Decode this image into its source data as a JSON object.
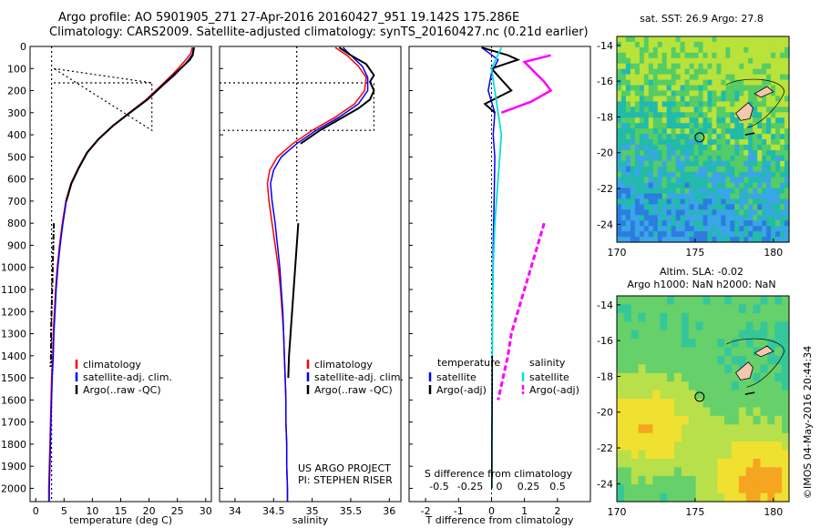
{
  "header": {
    "line1": "Argo profile: AO 5901905_271 27-Apr-2016 20160427_951 19.142S 175.286E",
    "line2": "Climatology: CARS2009. Satellite-adjusted climatology: synTS_20160427.nc (0.21d earlier)"
  },
  "colors": {
    "climatology": "#ff0000",
    "satellite": "#0000ff",
    "argo": "#000000",
    "cyan": "#00e0e0",
    "magenta": "#ff00ff",
    "land": "#f5c7b0"
  },
  "chart_data": [
    {
      "type": "line",
      "name": "temperature-panel",
      "xlabel": "temperature (deg C)",
      "ylabel": "",
      "xlim": [
        -1,
        31
      ],
      "ylim": [
        2060,
        0
      ],
      "xticks": [
        0,
        5,
        10,
        15,
        20,
        25,
        30
      ],
      "yticks": [
        0,
        100,
        200,
        300,
        400,
        500,
        600,
        700,
        800,
        900,
        1000,
        1100,
        1200,
        1300,
        1400,
        1500,
        1600,
        1700,
        1800,
        1900,
        2000
      ],
      "legend": [
        "climatology",
        "satellite-adj. clim.",
        "Argo(..raw -QC)"
      ],
      "series": [
        {
          "name": "climatology",
          "points": [
            [
              27.6,
              5
            ],
            [
              27.4,
              30
            ],
            [
              26.5,
              60
            ],
            [
              25.5,
              90
            ],
            [
              24.0,
              130
            ],
            [
              22.0,
              180
            ],
            [
              19.5,
              240
            ],
            [
              16.5,
              300
            ],
            [
              13.5,
              360
            ],
            [
              11.0,
              420
            ],
            [
              9.0,
              480
            ],
            [
              7.5,
              550
            ],
            [
              6.2,
              620
            ],
            [
              5.3,
              700
            ],
            [
              4.7,
              800
            ],
            [
              4.2,
              900
            ],
            [
              3.8,
              1000
            ],
            [
              3.5,
              1100
            ],
            [
              3.3,
              1200
            ],
            [
              3.1,
              1300
            ],
            [
              3.0,
              1400
            ],
            [
              2.8,
              1500
            ],
            [
              2.7,
              1600
            ],
            [
              2.6,
              1700
            ],
            [
              2.5,
              1800
            ],
            [
              2.4,
              1900
            ],
            [
              2.3,
              2000
            ],
            [
              2.3,
              2060
            ]
          ]
        },
        {
          "name": "satellite-adj. clim.",
          "points": [
            [
              28.0,
              5
            ],
            [
              27.8,
              30
            ],
            [
              27.0,
              60
            ],
            [
              26.0,
              90
            ],
            [
              24.5,
              130
            ],
            [
              22.3,
              180
            ],
            [
              19.8,
              240
            ],
            [
              16.7,
              300
            ],
            [
              13.6,
              360
            ],
            [
              11.1,
              420
            ],
            [
              9.1,
              480
            ],
            [
              7.6,
              550
            ],
            [
              6.3,
              620
            ],
            [
              5.4,
              700
            ],
            [
              4.8,
              800
            ],
            [
              4.3,
              900
            ],
            [
              3.9,
              1000
            ],
            [
              3.6,
              1100
            ],
            [
              3.4,
              1200
            ],
            [
              3.2,
              1300
            ],
            [
              3.1,
              1400
            ],
            [
              2.9,
              1500
            ],
            [
              2.8,
              1600
            ],
            [
              2.7,
              1700
            ],
            [
              2.6,
              1800
            ],
            [
              2.5,
              1900
            ],
            [
              2.4,
              2000
            ],
            [
              2.4,
              2060
            ]
          ]
        },
        {
          "name": "Argo(..raw -QC)",
          "points": [
            [
              27.9,
              5
            ],
            [
              27.7,
              40
            ],
            [
              27.2,
              60
            ],
            [
              26.0,
              90
            ],
            [
              24.3,
              130
            ],
            [
              22.2,
              180
            ],
            [
              19.7,
              240
            ],
            [
              16.6,
              300
            ],
            [
              13.6,
              360
            ],
            [
              11.1,
              420
            ],
            [
              9.1,
              480
            ],
            [
              7.6,
              550
            ],
            [
              6.3,
              620
            ],
            [
              5.4,
              700
            ]
          ]
        },
        {
          "name": "Argo deep",
          "points": [
            [
              3.2,
              800
            ],
            [
              3.1,
              900
            ],
            [
              3.0,
              1000
            ],
            [
              2.9,
              1100
            ],
            [
              2.8,
              1200
            ],
            [
              2.7,
              1300
            ],
            [
              2.7,
              1400
            ],
            [
              2.6,
              1450
            ]
          ]
        }
      ]
    },
    {
      "type": "line",
      "name": "salinity-panel",
      "xlabel": "salinity",
      "ylabel": "",
      "xlim": [
        33.8,
        36.15
      ],
      "ylim": [
        2060,
        0
      ],
      "xticks": [
        34,
        34.5,
        35,
        35.5,
        36
      ],
      "legend": [
        "climatology",
        "satellite-adj. clim.",
        "Argo(..raw -QC)"
      ],
      "annotation": [
        "US ARGO PROJECT",
        "PI: STEPHEN RISER"
      ],
      "series": [
        {
          "name": "climatology",
          "points": [
            [
              35.3,
              5
            ],
            [
              35.45,
              40
            ],
            [
              35.6,
              90
            ],
            [
              35.7,
              140
            ],
            [
              35.68,
              200
            ],
            [
              35.55,
              260
            ],
            [
              35.3,
              320
            ],
            [
              35.0,
              380
            ],
            [
              34.75,
              440
            ],
            [
              34.55,
              500
            ],
            [
              34.45,
              560
            ],
            [
              34.42,
              620
            ],
            [
              34.44,
              700
            ],
            [
              34.48,
              800
            ],
            [
              34.52,
              900
            ],
            [
              34.56,
              1000
            ],
            [
              34.59,
              1100
            ],
            [
              34.61,
              1200
            ],
            [
              34.63,
              1300
            ],
            [
              34.64,
              1400
            ],
            [
              34.65,
              1500
            ],
            [
              34.66,
              1600
            ],
            [
              34.66,
              1700
            ],
            [
              34.67,
              1800
            ],
            [
              34.67,
              1900
            ],
            [
              34.68,
              2000
            ],
            [
              34.68,
              2060
            ]
          ]
        },
        {
          "name": "satellite-adj. clim.",
          "points": [
            [
              35.4,
              5
            ],
            [
              35.5,
              40
            ],
            [
              35.65,
              90
            ],
            [
              35.72,
              140
            ],
            [
              35.72,
              200
            ],
            [
              35.6,
              260
            ],
            [
              35.35,
              320
            ],
            [
              35.05,
              380
            ],
            [
              34.8,
              440
            ],
            [
              34.6,
              500
            ],
            [
              34.5,
              560
            ],
            [
              34.46,
              620
            ],
            [
              34.48,
              700
            ],
            [
              34.52,
              800
            ],
            [
              34.55,
              900
            ],
            [
              34.58,
              1000
            ],
            [
              34.6,
              1100
            ],
            [
              34.62,
              1200
            ],
            [
              34.63,
              1300
            ],
            [
              34.64,
              1400
            ],
            [
              34.65,
              1500
            ],
            [
              34.66,
              1600
            ],
            [
              34.66,
              1700
            ],
            [
              34.67,
              1800
            ],
            [
              34.67,
              1900
            ],
            [
              34.68,
              2000
            ],
            [
              34.68,
              2060
            ]
          ]
        },
        {
          "name": "Argo(..raw -QC)",
          "points": [
            [
              35.35,
              5
            ],
            [
              35.5,
              40
            ],
            [
              35.7,
              80
            ],
            [
              35.8,
              130
            ],
            [
              35.75,
              160
            ],
            [
              35.8,
              200
            ],
            [
              35.75,
              240
            ],
            [
              35.6,
              280
            ],
            [
              35.4,
              320
            ],
            [
              35.1,
              380
            ],
            [
              34.85,
              440
            ]
          ]
        },
        {
          "name": "Argo deep",
          "points": [
            [
              34.82,
              800
            ],
            [
              34.8,
              900
            ],
            [
              34.78,
              1000
            ],
            [
              34.76,
              1100
            ],
            [
              34.74,
              1200
            ],
            [
              34.72,
              1300
            ],
            [
              34.7,
              1400
            ],
            [
              34.69,
              1500
            ]
          ]
        }
      ]
    },
    {
      "type": "line",
      "name": "difference-panel",
      "xlabel": "T difference from climatology",
      "xlabel_top": "S difference from climatology",
      "xlim": [
        -2.5,
        3.0
      ],
      "ylim": [
        2060,
        0
      ],
      "xticks": [
        -2,
        -1,
        0,
        1,
        2
      ],
      "xticklabels_S": [
        "-0.5",
        "-0.25",
        "0",
        "0.25",
        "0.5"
      ],
      "legend_temperature": [
        "temperature",
        "satellite",
        "Argo(-adj)"
      ],
      "legend_salinity": [
        "salinity",
        "satellite",
        "Argo(-adj)"
      ],
      "series": [
        {
          "name": "temperature satellite",
          "points": [
            [
              -0.3,
              5
            ],
            [
              0.2,
              60
            ],
            [
              0.0,
              120
            ],
            [
              -0.1,
              200
            ],
            [
              0.1,
              300
            ],
            [
              0.05,
              400
            ],
            [
              0.1,
              500
            ],
            [
              0.08,
              700
            ],
            [
              0.05,
              900
            ],
            [
              0.03,
              1200
            ],
            [
              0.02,
              1500
            ],
            [
              0.01,
              2000
            ]
          ]
        },
        {
          "name": "temperature Argo(-adj)",
          "points": [
            [
              -0.3,
              5
            ],
            [
              0.5,
              40
            ],
            [
              0.8,
              60
            ],
            [
              0.0,
              100
            ],
            [
              0.3,
              150
            ],
            [
              0.6,
              200
            ],
            [
              -0.2,
              260
            ],
            [
              0.1,
              300
            ]
          ]
        },
        {
          "name": "salinity satellite",
          "points": [
            [
              0.3,
              5
            ],
            [
              0.0,
              100
            ],
            [
              0.1,
              200
            ],
            [
              0.3,
              400
            ],
            [
              0.2,
              600
            ],
            [
              0.1,
              800
            ],
            [
              0.05,
              1000
            ],
            [
              0.03,
              1200
            ],
            [
              0.02,
              1500
            ],
            [
              0.01,
              2000
            ]
          ]
        },
        {
          "name": "salinity Argo(-adj)",
          "points": [
            [
              1.8,
              40
            ],
            [
              1.0,
              70
            ],
            [
              1.6,
              160
            ],
            [
              1.8,
              200
            ],
            [
              1.2,
              250
            ],
            [
              0.3,
              300
            ]
          ]
        },
        {
          "name": "salinity Argo deep",
          "points": [
            [
              1.6,
              800
            ],
            [
              1.4,
              900
            ],
            [
              1.2,
              1000
            ],
            [
              1.0,
              1100
            ],
            [
              0.8,
              1200
            ],
            [
              0.6,
              1300
            ],
            [
              0.5,
              1400
            ],
            [
              0.35,
              1500
            ],
            [
              0.2,
              1600
            ]
          ]
        },
        {
          "name": "temperature Argo deep",
          "points": [
            [
              0.02,
              1400
            ],
            [
              0.02,
              1600
            ],
            [
              0.01,
              1800
            ],
            [
              0.01,
              2000
            ]
          ]
        }
      ]
    },
    {
      "type": "heatmap",
      "name": "sst-map",
      "title": "sat. SST: 26.9  Argo: 27.8",
      "xlim": [
        170,
        181
      ],
      "ylim": [
        -25,
        -13.5
      ],
      "xticks": [
        170,
        175,
        180
      ],
      "yticks": [
        -14,
        -16,
        -18,
        -20,
        -22,
        -24
      ],
      "marker": [
        175.286,
        -19.142
      ]
    },
    {
      "type": "heatmap",
      "name": "sla-map",
      "title": "Altim. SLA: -0.02",
      "subtitle": "Argo h1000: NaN h2000: NaN",
      "xlim": [
        170,
        181
      ],
      "ylim": [
        -25,
        -13.5
      ],
      "xticks": [
        170,
        175,
        180
      ],
      "yticks": [
        -14,
        -16,
        -18,
        -20,
        -22,
        -24
      ],
      "marker": [
        175.286,
        -19.142
      ]
    }
  ],
  "footer": {
    "stamp": "©IMOS 04-May-2016 20:44:34"
  }
}
